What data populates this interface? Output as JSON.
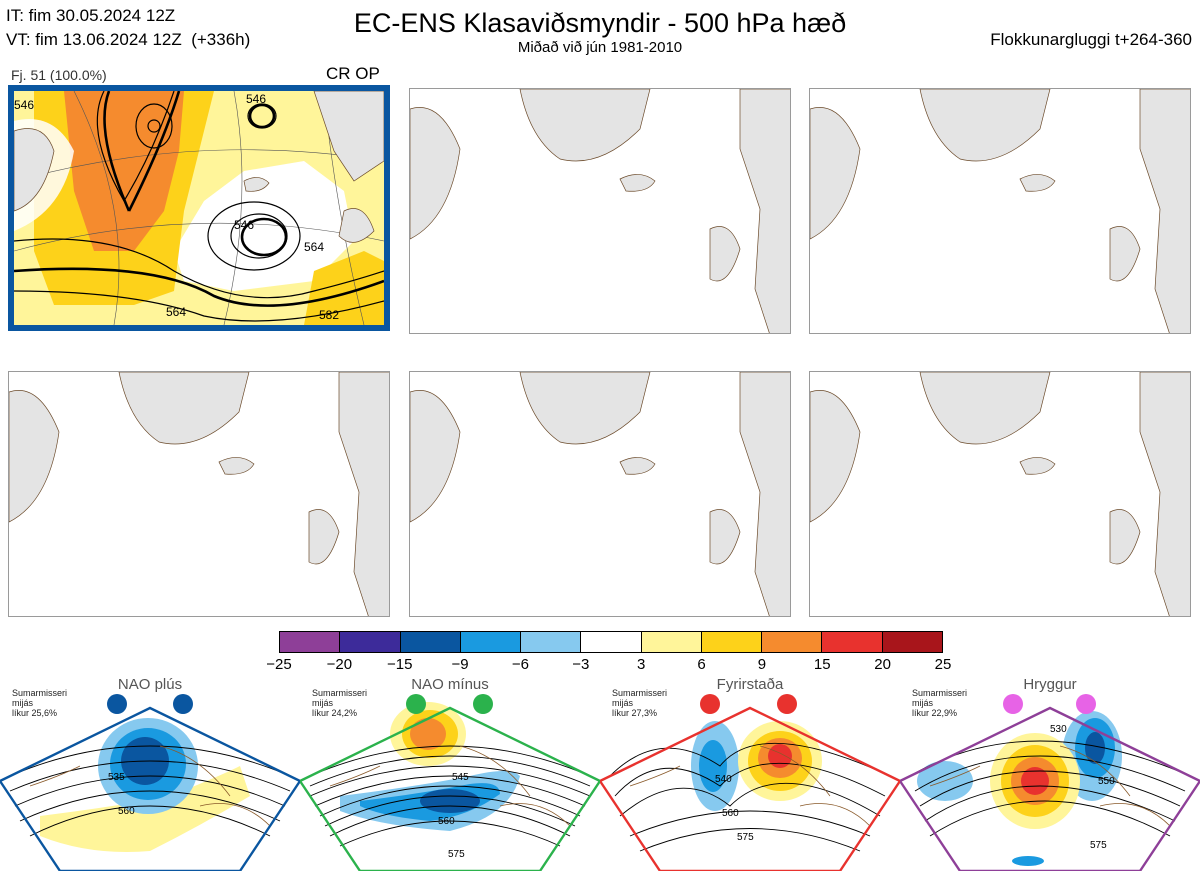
{
  "header": {
    "it": "IT: fim 30.05.2024 12Z",
    "vt": "VT: fim 13.06.2024 12Z  (+336h)",
    "title": "EC-ENS Klasaviðsmyndir - 500 hPa hæð",
    "subtitle": "Miðað við jún 1981-2010",
    "window": "Flokkunargluggi t+264-360"
  },
  "main_panel": {
    "cluster_label": "Fj. 51 (100.0%)",
    "cluster_tag": "CR OP",
    "contour_labels": [
      "546",
      "546",
      "564",
      "564",
      "582",
      "546"
    ],
    "accent_color": "#0a56a0"
  },
  "colorbar": {
    "colors": [
      "#8e3f98",
      "#3d2b9a",
      "#0a56a0",
      "#1a9ae0",
      "#86c9ef",
      "#ffffff",
      "#fff59a",
      "#fdd21a",
      "#f58b2e",
      "#e8322e",
      "#a8151b"
    ],
    "ticks": [
      "−25",
      "−20",
      "−15",
      "−9",
      "−6",
      "−3",
      "3",
      "6",
      "9",
      "15",
      "20",
      "25"
    ]
  },
  "regimes": [
    {
      "name": "NAO plús",
      "note": "Sumarmisseri\nmijás\nlíkur 25,6%",
      "color": "#0a56a0",
      "labels": [
        "535",
        "560"
      ]
    },
    {
      "name": "NAO mínus",
      "note": "Sumarmisseri\nmijás\nlíkur 24,2%",
      "color": "#2bb24c",
      "labels": [
        "545",
        "560",
        "575"
      ]
    },
    {
      "name": "Fyrirstaða",
      "note": "Sumarmisseri\nmijás\nlíkur 27,3%",
      "color": "#e8322e",
      "labels": [
        "540",
        "560",
        "575"
      ]
    },
    {
      "name": "Hryggur",
      "note": "Sumarmisseri\nmijás\nlíkur 22,9%",
      "color": "#8e3f98",
      "labels": [
        "530",
        "550",
        "575"
      ]
    }
  ]
}
